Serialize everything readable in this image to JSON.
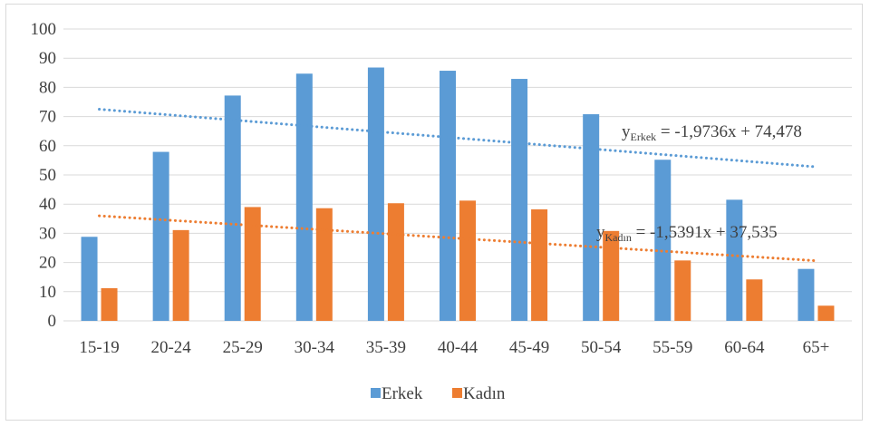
{
  "chart_data": {
    "type": "bar",
    "categories": [
      "15-19",
      "20-24",
      "25-29",
      "30-34",
      "35-39",
      "40-44",
      "45-49",
      "50-54",
      "55-59",
      "60-64",
      "65+"
    ],
    "series": [
      {
        "name": "Erkek",
        "color": "#5b9bd5",
        "values": [
          28.8,
          57.9,
          77.2,
          84.7,
          86.8,
          85.7,
          82.9,
          70.8,
          55.2,
          41.5,
          17.8
        ]
      },
      {
        "name": "Kadın",
        "color": "#ed7d31",
        "values": [
          11.2,
          31.1,
          39.0,
          38.6,
          40.3,
          41.2,
          38.2,
          30.8,
          20.7,
          14.2,
          5.2
        ]
      }
    ],
    "yticks": [
      "0",
      "10",
      "20",
      "30",
      "40",
      "50",
      "60",
      "70",
      "80",
      "90",
      "100"
    ],
    "ylim": [
      0,
      100
    ],
    "grid": true,
    "legend_position": "bottom",
    "trendlines": [
      {
        "series": "Erkek",
        "slope": -1.9736,
        "intercept": 74.478,
        "color": "#5b9bd5",
        "label_y": "y",
        "label_sub": "Erkek",
        "label_rest": " = -1,9736x + 74,478"
      },
      {
        "series": "Kadın",
        "slope": -1.5391,
        "intercept": 37.535,
        "color": "#ed7d31",
        "label_y": "y",
        "label_sub": "Kadın",
        "label_rest": " = -1,5391x + 37,535"
      }
    ]
  }
}
